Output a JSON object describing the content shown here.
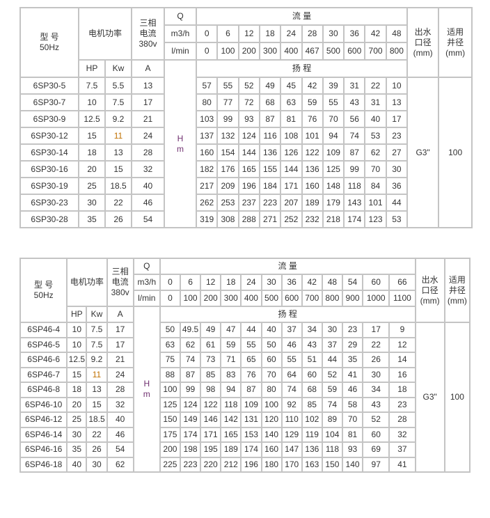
{
  "tables": [
    {
      "model_label": "型 号",
      "freq": "50Hz",
      "power_label": "电机功率",
      "current_label_1": "三相",
      "current_label_2": "电流",
      "current_label_3": "380v",
      "q_label": "Q",
      "flow_label": "流 量",
      "unit_m3h": "m3/h",
      "unit_lmin": "l/min",
      "outlet_label_1": "出水",
      "outlet_label_2": "口径",
      "outlet_label_3": "(mm)",
      "well_label_1": "适用",
      "well_label_2": "井径",
      "well_label_3": "(mm)",
      "hp_label": "HP",
      "kw_label": "Kw",
      "a_label": "A",
      "head_label": "扬 程",
      "h_label": "H",
      "m_label": "m",
      "outlet_value": "G3\"",
      "well_value": "100",
      "m3h": [
        "0",
        "6",
        "12",
        "18",
        "24",
        "28",
        "30",
        "36",
        "42",
        "48"
      ],
      "lmin": [
        "0",
        "100",
        "200",
        "300",
        "400",
        "467",
        "500",
        "600",
        "700",
        "800"
      ],
      "rows": [
        {
          "model": "6SP30-5",
          "hp": "7.5",
          "kw": "5.5",
          "a": "13",
          "heads": [
            "57",
            "55",
            "52",
            "49",
            "45",
            "42",
            "39",
            "31",
            "22",
            "10"
          ]
        },
        {
          "model": "6SP30-7",
          "hp": "10",
          "kw": "7.5",
          "a": "17",
          "heads": [
            "80",
            "77",
            "72",
            "68",
            "63",
            "59",
            "55",
            "43",
            "31",
            "13"
          ]
        },
        {
          "model": "6SP30-9",
          "hp": "12.5",
          "kw": "9.2",
          "a": "21",
          "heads": [
            "103",
            "99",
            "93",
            "87",
            "81",
            "76",
            "70",
            "56",
            "40",
            "17"
          ]
        },
        {
          "model": "6SP30-12",
          "hp": "15",
          "kw": "11",
          "a": "24",
          "kw_highlight": true,
          "heads": [
            "137",
            "132",
            "124",
            "116",
            "108",
            "101",
            "94",
            "74",
            "53",
            "23"
          ]
        },
        {
          "model": "6SP30-14",
          "hp": "18",
          "kw": "13",
          "a": "28",
          "heads": [
            "160",
            "154",
            "144",
            "136",
            "126",
            "122",
            "109",
            "87",
            "62",
            "27"
          ]
        },
        {
          "model": "6SP30-16",
          "hp": "20",
          "kw": "15",
          "a": "32",
          "heads": [
            "182",
            "176",
            "165",
            "155",
            "144",
            "136",
            "125",
            "99",
            "70",
            "30"
          ]
        },
        {
          "model": "6SP30-19",
          "hp": "25",
          "kw": "18.5",
          "a": "40",
          "heads": [
            "217",
            "209",
            "196",
            "184",
            "171",
            "160",
            "148",
            "118",
            "84",
            "36"
          ]
        },
        {
          "model": "6SP30-23",
          "hp": "30",
          "kw": "22",
          "a": "46",
          "heads": [
            "262",
            "253",
            "237",
            "223",
            "207",
            "189",
            "179",
            "143",
            "101",
            "44"
          ]
        },
        {
          "model": "6SP30-28",
          "hp": "35",
          "kw": "26",
          "a": "54",
          "heads": [
            "319",
            "308",
            "288",
            "271",
            "252",
            "232",
            "218",
            "174",
            "123",
            "53"
          ]
        }
      ]
    },
    {
      "model_label": "型 号",
      "freq": "50Hz",
      "power_label": "电机功率",
      "current_label_1": "三相",
      "current_label_2": "电流",
      "current_label_3": "380v",
      "q_label": "Q",
      "flow_label": "流 量",
      "unit_m3h": "m3/h",
      "unit_lmin": "l/min",
      "outlet_label_1": "出水",
      "outlet_label_2": "口径",
      "outlet_label_3": "(mm)",
      "well_label_1": "适用",
      "well_label_2": "井径",
      "well_label_3": "(mm)",
      "hp_label": "HP",
      "kw_label": "Kw",
      "a_label": "A",
      "head_label": "扬 程",
      "h_label": "H",
      "m_label": "m",
      "outlet_value": "G3\"",
      "well_value": "100",
      "m3h": [
        "0",
        "6",
        "12",
        "18",
        "24",
        "30",
        "36",
        "42",
        "48",
        "54",
        "60",
        "66"
      ],
      "lmin": [
        "0",
        "100",
        "200",
        "300",
        "400",
        "500",
        "600",
        "700",
        "800",
        "900",
        "1000",
        "1100"
      ],
      "rows": [
        {
          "model": "6SP46-4",
          "hp": "10",
          "kw": "7.5",
          "a": "17",
          "heads": [
            "50",
            "49.5",
            "49",
            "47",
            "44",
            "40",
            "37",
            "34",
            "30",
            "23",
            "17",
            "9"
          ]
        },
        {
          "model": "6SP46-5",
          "hp": "10",
          "kw": "7.5",
          "a": "17",
          "heads": [
            "63",
            "62",
            "61",
            "59",
            "55",
            "50",
            "46",
            "43",
            "37",
            "29",
            "22",
            "12"
          ]
        },
        {
          "model": "6SP46-6",
          "hp": "12.5",
          "kw": "9.2",
          "a": "21",
          "heads": [
            "75",
            "74",
            "73",
            "71",
            "65",
            "60",
            "55",
            "51",
            "44",
            "35",
            "26",
            "14"
          ]
        },
        {
          "model": "6SP46-7",
          "hp": "15",
          "kw": "11",
          "a": "24",
          "kw_highlight": true,
          "heads": [
            "88",
            "87",
            "85",
            "83",
            "76",
            "70",
            "64",
            "60",
            "52",
            "41",
            "30",
            "16"
          ]
        },
        {
          "model": "6SP46-8",
          "hp": "18",
          "kw": "13",
          "a": "28",
          "heads": [
            "100",
            "99",
            "98",
            "94",
            "87",
            "80",
            "74",
            "68",
            "59",
            "46",
            "34",
            "18"
          ]
        },
        {
          "model": "6SP46-10",
          "hp": "20",
          "kw": "15",
          "a": "32",
          "heads": [
            "125",
            "124",
            "122",
            "118",
            "109",
            "100",
            "92",
            "85",
            "74",
            "58",
            "43",
            "23"
          ]
        },
        {
          "model": "6SP46-12",
          "hp": "25",
          "kw": "18.5",
          "a": "40",
          "heads": [
            "150",
            "149",
            "146",
            "142",
            "131",
            "120",
            "110",
            "102",
            "89",
            "70",
            "52",
            "28"
          ]
        },
        {
          "model": "6SP46-14",
          "hp": "30",
          "kw": "22",
          "a": "46",
          "heads": [
            "175",
            "174",
            "171",
            "165",
            "153",
            "140",
            "129",
            "119",
            "104",
            "81",
            "60",
            "32"
          ]
        },
        {
          "model": "6SP46-16",
          "hp": "35",
          "kw": "26",
          "a": "54",
          "heads": [
            "200",
            "198",
            "195",
            "189",
            "174",
            "160",
            "147",
            "136",
            "118",
            "93",
            "69",
            "37"
          ]
        },
        {
          "model": "6SP46-18",
          "hp": "40",
          "kw": "30",
          "a": "62",
          "heads": [
            "225",
            "223",
            "220",
            "212",
            "196",
            "180",
            "170",
            "163",
            "150",
            "140",
            "97",
            "41"
          ]
        }
      ]
    }
  ],
  "colors": {
    "border": "#c4c4c4",
    "highlight": "#c07000",
    "hm": "#703070"
  }
}
